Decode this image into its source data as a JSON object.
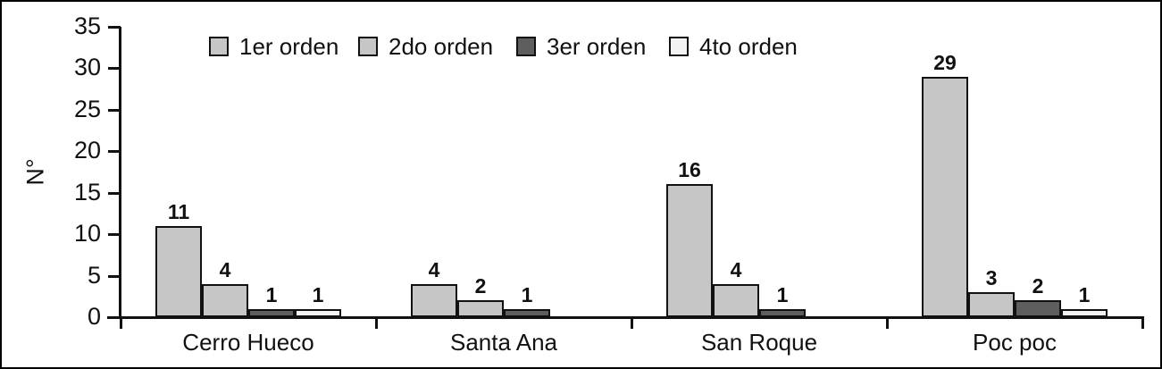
{
  "chart_data": {
    "type": "bar",
    "title": "",
    "xlabel": "",
    "ylabel": "N°",
    "ylim": [
      0,
      35
    ],
    "ytick_step": 5,
    "grid": false,
    "legend_position": "top",
    "categories": [
      "Cerro Hueco",
      "Santa Ana",
      "San Roque",
      "Poc poc"
    ],
    "series": [
      {
        "name": "1er orden",
        "color": "#c6c6c6",
        "values": [
          11,
          4,
          16,
          29
        ]
      },
      {
        "name": "2do orden",
        "color": "#c6c6c6",
        "values": [
          4,
          2,
          4,
          3
        ]
      },
      {
        "name": "3er orden",
        "color": "#5e5e5e",
        "values": [
          1,
          1,
          1,
          2
        ]
      },
      {
        "name": "4to orden",
        "color": "#f2f2f2",
        "values": [
          1,
          null,
          null,
          1
        ]
      }
    ]
  }
}
